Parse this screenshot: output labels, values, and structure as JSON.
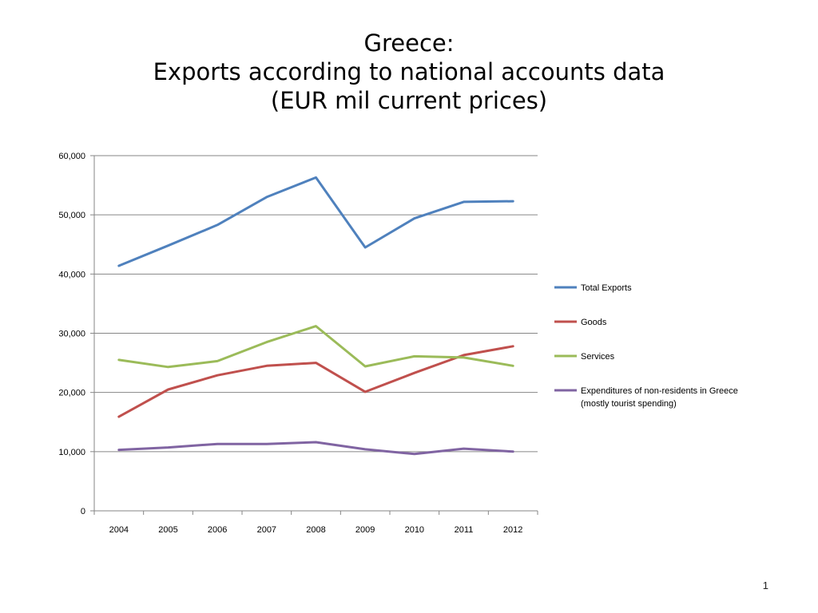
{
  "slide": {
    "title_lines": [
      "Greece:",
      "Exports according to national accounts data",
      "(EUR mil current prices)"
    ],
    "page_number": "1"
  },
  "chart_data": {
    "type": "line",
    "title": "Greece: Exports according to national accounts data (EUR mil current prices)",
    "categories": [
      "2004",
      "2005",
      "2006",
      "2007",
      "2008",
      "2009",
      "2010",
      "2011",
      "2012"
    ],
    "ylim": [
      0,
      60000
    ],
    "yticks": [
      0,
      10000,
      20000,
      30000,
      40000,
      50000,
      60000
    ],
    "ytick_labels": [
      "0",
      "10,000",
      "20,000",
      "30,000",
      "40,000",
      "50,000",
      "60,000"
    ],
    "grid": true,
    "legend_position": "right",
    "series": [
      {
        "name": "Total Exports",
        "color": "#4F81BD",
        "values": [
          41400,
          44800,
          48300,
          53000,
          56300,
          44500,
          49400,
          52200,
          52300
        ]
      },
      {
        "name": "Goods",
        "color": "#C0504D",
        "values": [
          15900,
          20500,
          22900,
          24500,
          25000,
          20100,
          23300,
          26300,
          27800
        ]
      },
      {
        "name": "Services",
        "color": "#9BBB59",
        "values": [
          25500,
          24300,
          25300,
          28500,
          31200,
          24400,
          26100,
          25900,
          24500
        ]
      },
      {
        "name": "Expenditures of non-residents in Greece (mostly tourist spending)",
        "legend_lines": [
          "Expenditures of non-residents in Greece",
          "(mostly tourist spending)"
        ],
        "color": "#8064A2",
        "values": [
          10300,
          10700,
          11300,
          11300,
          11600,
          10400,
          9600,
          10500,
          10000
        ]
      }
    ]
  }
}
